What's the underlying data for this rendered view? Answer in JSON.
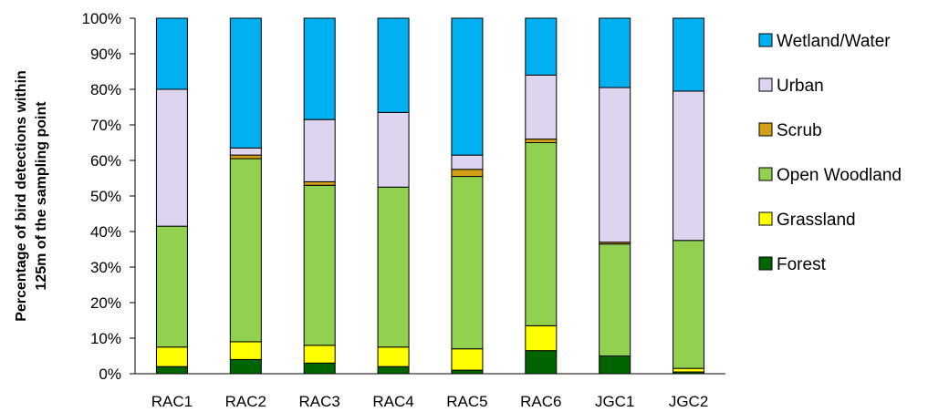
{
  "chart_data": {
    "type": "bar",
    "stacked": true,
    "percent": true,
    "title": "",
    "xlabel": "",
    "ylabel_lines": [
      "Percentage of bird detections within",
      "125m of the sampling point"
    ],
    "ylim": [
      0,
      100
    ],
    "yticks": [
      "0%",
      "10%",
      "20%",
      "30%",
      "40%",
      "50%",
      "60%",
      "70%",
      "80%",
      "90%",
      "100%"
    ],
    "grid": false,
    "legend_position": "right",
    "categories": [
      "RAC1",
      "RAC2",
      "RAC3",
      "RAC4",
      "RAC5",
      "RAC6",
      "JGC1",
      "JGC2"
    ],
    "series": [
      {
        "name": "Forest",
        "color": "#006400",
        "values": [
          2.0,
          4.0,
          3.0,
          2.0,
          1.0,
          6.5,
          5.0,
          0.5
        ]
      },
      {
        "name": "Grassland",
        "color": "#FFFF00",
        "values": [
          5.5,
          5.0,
          5.0,
          5.5,
          6.0,
          7.0,
          0.0,
          1.0
        ]
      },
      {
        "name": "Open Woodland",
        "color": "#92D050",
        "values": [
          34.0,
          51.5,
          45.0,
          45.0,
          48.5,
          51.5,
          31.5,
          36.0
        ]
      },
      {
        "name": "Scrub",
        "color": "#D4A017",
        "values": [
          0.0,
          1.0,
          1.0,
          0.0,
          2.0,
          1.0,
          0.5,
          0.0
        ]
      },
      {
        "name": "Urban",
        "color": "#DDD5F0",
        "values": [
          38.5,
          2.0,
          17.5,
          21.0,
          4.0,
          18.0,
          43.5,
          42.0
        ]
      },
      {
        "name": "Wetland/Water",
        "color": "#00B0F0",
        "values": [
          20.0,
          36.5,
          28.5,
          26.5,
          38.5,
          16.0,
          19.5,
          20.5
        ]
      }
    ],
    "legend_order": [
      "Wetland/Water",
      "Urban",
      "Scrub",
      "Open Woodland",
      "Grassland",
      "Forest"
    ]
  }
}
